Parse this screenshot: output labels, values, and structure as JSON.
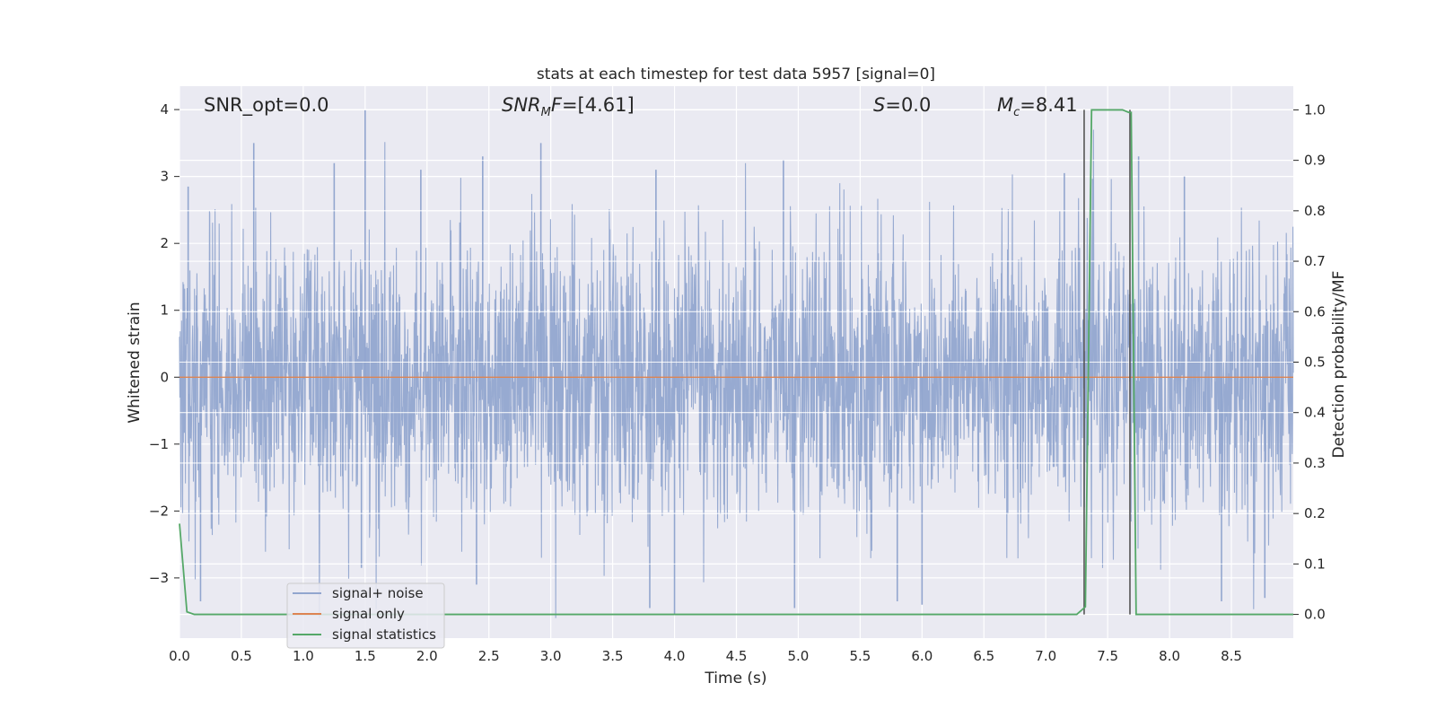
{
  "chart_data": {
    "type": "line",
    "title": "stats at each timestep for test data 5957 [signal=0]",
    "xlabel": "Time (s)",
    "ylabel": "Whitened strain",
    "ylabel_right": "Detection probability/MF",
    "xlim": [
      0.0,
      9.0
    ],
    "ylim": [
      -3.9,
      4.35
    ],
    "ylim_right": [
      -0.047,
      1.047
    ],
    "xticks": [
      "0.0",
      "0.5",
      "1.0",
      "1.5",
      "2.0",
      "2.5",
      "3.0",
      "3.5",
      "4.0",
      "4.5",
      "5.0",
      "5.5",
      "6.0",
      "6.5",
      "7.0",
      "7.5",
      "8.0",
      "8.5"
    ],
    "xtick_values": [
      0.0,
      0.5,
      1.0,
      1.5,
      2.0,
      2.5,
      3.0,
      3.5,
      4.0,
      4.5,
      5.0,
      5.5,
      6.0,
      6.5,
      7.0,
      7.5,
      8.0,
      8.5
    ],
    "yticks": [
      "−3",
      "−2",
      "−1",
      "0",
      "1",
      "2",
      "3",
      "4"
    ],
    "ytick_values": [
      -3,
      -2,
      -1,
      0,
      1,
      2,
      3,
      4
    ],
    "yticks_right": [
      "0.0",
      "0.1",
      "0.2",
      "0.3",
      "0.4",
      "0.5",
      "0.6",
      "0.7",
      "0.8",
      "0.9",
      "1.0"
    ],
    "ytick_values_right": [
      0.0,
      0.1,
      0.2,
      0.3,
      0.4,
      0.5,
      0.6,
      0.7,
      0.8,
      0.9,
      1.0
    ],
    "grid": true,
    "legend_placement": "lower-left",
    "series": [
      {
        "name": "signal+ noise",
        "axis": "left",
        "color": "#92a6cf",
        "description": "dense noisy strain trace, amplitude mostly within about ±2.5, peaks near 4.0 and -3.5",
        "sample_peaks": [
          {
            "x": 0.07,
            "y": 2.85
          },
          {
            "x": 0.6,
            "y": 3.5
          },
          {
            "x": 1.25,
            "y": 3.2
          },
          {
            "x": 1.5,
            "y": 4.0
          },
          {
            "x": 1.95,
            "y": 3.1
          },
          {
            "x": 2.45,
            "y": 3.3
          },
          {
            "x": 2.92,
            "y": 3.5
          },
          {
            "x": 3.85,
            "y": 3.1
          },
          {
            "x": 4.88,
            "y": 3.25
          },
          {
            "x": 7.15,
            "y": 3.05
          },
          {
            "x": 7.75,
            "y": 3.3
          },
          {
            "x": 8.12,
            "y": 3.0
          },
          {
            "x": 0.17,
            "y": -3.35
          },
          {
            "x": 1.47,
            "y": -2.85
          },
          {
            "x": 2.4,
            "y": -3.1
          },
          {
            "x": 3.8,
            "y": -3.45
          },
          {
            "x": 4.0,
            "y": -3.55
          },
          {
            "x": 4.97,
            "y": -3.45
          },
          {
            "x": 5.8,
            "y": -3.35
          },
          {
            "x": 6.0,
            "y": -3.4
          },
          {
            "x": 8.42,
            "y": -3.35
          },
          {
            "x": 8.77,
            "y": -3.3
          }
        ]
      },
      {
        "name": "signal only",
        "axis": "left",
        "color": "#dd8452",
        "x": [
          0.0,
          9.0
        ],
        "y": [
          0.0,
          0.0
        ]
      },
      {
        "name": "signal statistics",
        "axis": "right",
        "color": "#55a868",
        "x": [
          0.0,
          0.06,
          0.12,
          7.25,
          7.32,
          7.37,
          7.62,
          7.67,
          7.69,
          7.73,
          7.8,
          9.0
        ],
        "y": [
          0.18,
          0.005,
          0.0,
          0.0,
          0.015,
          1.0,
          1.0,
          0.995,
          0.995,
          0.0,
          0.0,
          0.0
        ]
      }
    ],
    "vertical_lines": [
      {
        "x": 7.31,
        "color": "#555555"
      },
      {
        "x": 7.68,
        "color": "#555555"
      }
    ],
    "annotations": [
      {
        "label": "SNR_opt=0.0",
        "x": 0.2
      },
      {
        "label_main": "SNR",
        "label_sub": "M",
        "label_tail": "F=[4.61]",
        "x": 2.6
      },
      {
        "label_main": "S",
        "label_tail": "=0.0",
        "x": 5.6
      },
      {
        "label_main": "M",
        "label_sub": "c",
        "label_tail": "=8.41",
        "x": 6.6
      }
    ]
  }
}
